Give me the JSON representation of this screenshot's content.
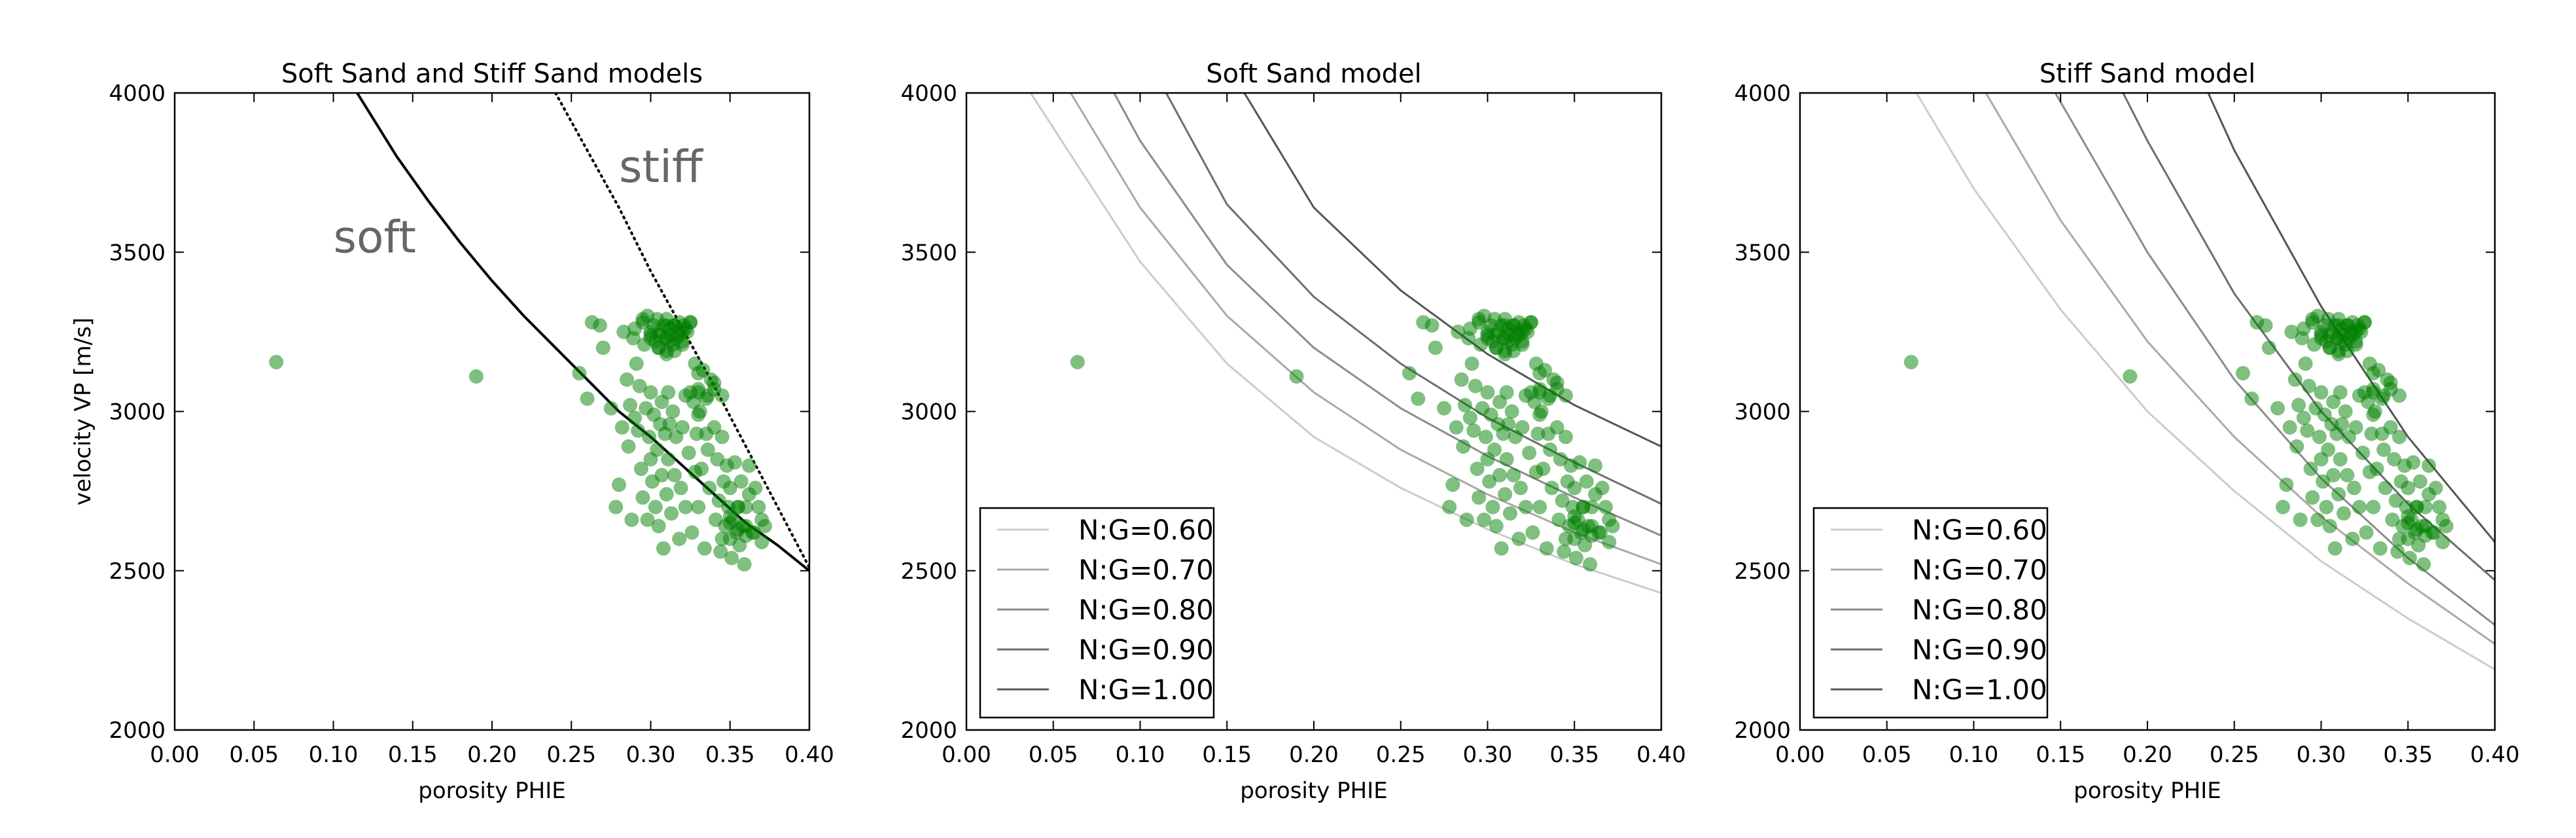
{
  "points": {
    "x": [
      0.064,
      0.19,
      0.255,
      0.26,
      0.263,
      0.268,
      0.27,
      0.275,
      0.278,
      0.28,
      0.282,
      0.283,
      0.285,
      0.286,
      0.287,
      0.288,
      0.289,
      0.29,
      0.29,
      0.291,
      0.292,
      0.293,
      0.294,
      0.295,
      0.295,
      0.296,
      0.297,
      0.298,
      0.298,
      0.299,
      0.3,
      0.3,
      0.3,
      0.301,
      0.302,
      0.302,
      0.303,
      0.303,
      0.304,
      0.304,
      0.305,
      0.305,
      0.306,
      0.306,
      0.307,
      0.307,
      0.308,
      0.308,
      0.309,
      0.309,
      0.31,
      0.31,
      0.31,
      0.311,
      0.311,
      0.312,
      0.312,
      0.313,
      0.313,
      0.314,
      0.314,
      0.315,
      0.315,
      0.316,
      0.316,
      0.317,
      0.318,
      0.318,
      0.319,
      0.32,
      0.32,
      0.321,
      0.322,
      0.322,
      0.323,
      0.324,
      0.325,
      0.326,
      0.327,
      0.328,
      0.328,
      0.329,
      0.33,
      0.33,
      0.331,
      0.332,
      0.333,
      0.334,
      0.335,
      0.336,
      0.337,
      0.338,
      0.34,
      0.341,
      0.342,
      0.343,
      0.344,
      0.345,
      0.346,
      0.347,
      0.348,
      0.349,
      0.35,
      0.35,
      0.351,
      0.352,
      0.353,
      0.354,
      0.355,
      0.356,
      0.357,
      0.358,
      0.359,
      0.36,
      0.362,
      0.364,
      0.366,
      0.368,
      0.37,
      0.372,
      0.3,
      0.305,
      0.31,
      0.315,
      0.32,
      0.325,
      0.33,
      0.335,
      0.34,
      0.345,
      0.35,
      0.355,
      0.36,
      0.365,
      0.37,
      0.295,
      0.31,
      0.33,
      0.35,
      0.36,
      0.325,
      0.32,
      0.315,
      0.305,
      0.3,
      0.31,
      0.312,
      0.318,
      0.322,
      0.33,
      0.336,
      0.355,
      0.362,
      0.345,
      0.34
    ],
    "y": [
      3155,
      3110,
      3120,
      3040,
      3280,
      3270,
      3200,
      3010,
      2700,
      2770,
      2950,
      3250,
      3100,
      2890,
      3020,
      2660,
      3230,
      3260,
      2980,
      3150,
      2940,
      3080,
      2820,
      3280,
      2730,
      3210,
      3010,
      2660,
      3300,
      2920,
      2850,
      3240,
      3060,
      2780,
      3270,
      2990,
      2700,
      3220,
      2880,
      3290,
      2640,
      3200,
      2960,
      3250,
      3030,
      2800,
      3270,
      2570,
      3230,
      2930,
      3290,
      2740,
      3190,
      3060,
      2850,
      3260,
      2960,
      3240,
      2680,
      3210,
      3000,
      3270,
      2800,
      3230,
      2920,
      3250,
      2600,
      3280,
      2760,
      3220,
      2950,
      3270,
      3050,
      2700,
      3250,
      2870,
      3280,
      2620,
      3030,
      2810,
      3150,
      2930,
      3070,
      2700,
      3000,
      2820,
      3130,
      2570,
      2930,
      3050,
      2760,
      3100,
      3070,
      2660,
      2850,
      2720,
      2560,
      2920,
      2780,
      2640,
      2830,
      2700,
      2600,
      2760,
      2540,
      2660,
      2840,
      2620,
      2700,
      2580,
      2780,
      2640,
      2520,
      2700,
      2830,
      2620,
      2760,
      2700,
      2590,
      2640,
      3250,
      3240,
      3230,
      3270,
      3250,
      3280,
      3060,
      3040,
      3090,
      3050,
      2650,
      2630,
      2640,
      2620,
      2660,
      3290,
      3270,
      2990,
      2670,
      2610,
      3060,
      3210,
      3190,
      3200,
      3230,
      3180,
      3220,
      3240,
      3260,
      3120,
      2880,
      2700,
      2740,
      2600,
      2950
    ]
  },
  "panels": [
    {
      "title": "Soft Sand and Stiff Sand models",
      "ylabel": "velocity VP [m/s]",
      "annotations": [
        {
          "text": "soft",
          "x": 0.1,
          "y": 3500
        },
        {
          "text": "stiff",
          "x": 0.28,
          "y": 3720
        }
      ]
    },
    {
      "title": "Soft Sand model",
      "ylabel": "",
      "legend": [
        "N:G=0.60",
        "N:G=0.70",
        "N:G=0.80",
        "N:G=0.90",
        "N:G=1.00"
      ]
    },
    {
      "title": "Stiff Sand model",
      "ylabel": "",
      "legend": [
        "N:G=0.60",
        "N:G=0.70",
        "N:G=0.80",
        "N:G=0.90",
        "N:G=1.00"
      ]
    }
  ],
  "chart_data": [
    {
      "type": "scatter",
      "title": "Soft Sand and Stiff Sand models",
      "xlabel": "porosity PHIE",
      "ylabel": "velocity VP [m/s]",
      "xlim": [
        0.0,
        0.4
      ],
      "ylim": [
        2000,
        4000
      ],
      "xticks": [
        "0.00",
        "0.05",
        "0.10",
        "0.15",
        "0.20",
        "0.25",
        "0.30",
        "0.35",
        "0.40"
      ],
      "yticks": [
        "2000",
        "2500",
        "3000",
        "3500",
        "4000"
      ],
      "series": [
        {
          "name": "soft",
          "style": "solid",
          "x": [
            0.115,
            0.14,
            0.16,
            0.18,
            0.2,
            0.22,
            0.24,
            0.26,
            0.28,
            0.3,
            0.32,
            0.34,
            0.36,
            0.38,
            0.4
          ],
          "y": [
            4000,
            3800,
            3660,
            3530,
            3410,
            3300,
            3200,
            3100,
            3000,
            2920,
            2830,
            2740,
            2650,
            2580,
            2500
          ]
        },
        {
          "name": "stiff",
          "style": "dotted",
          "x": [
            0.24,
            0.26,
            0.28,
            0.3,
            0.32,
            0.34,
            0.36,
            0.38,
            0.4
          ],
          "y": [
            4000,
            3820,
            3640,
            3440,
            3260,
            3080,
            2890,
            2700,
            2510
          ]
        }
      ],
      "scatter": "points"
    },
    {
      "type": "scatter",
      "title": "Soft Sand model",
      "xlabel": "porosity PHIE",
      "ylabel": "",
      "xlim": [
        0.0,
        0.4
      ],
      "ylim": [
        2000,
        4000
      ],
      "xticks": [
        "0.00",
        "0.05",
        "0.10",
        "0.15",
        "0.20",
        "0.25",
        "0.30",
        "0.35",
        "0.40"
      ],
      "yticks": [
        "2000",
        "2500",
        "3000",
        "3500",
        "4000"
      ],
      "legend_position": "lower-left",
      "series": [
        {
          "name": "N:G=0.60",
          "color": "#cccccc",
          "x": [
            0.037,
            0.1,
            0.15,
            0.2,
            0.25,
            0.3,
            0.35,
            0.4
          ],
          "y": [
            4000,
            3470,
            3150,
            2920,
            2760,
            2630,
            2520,
            2430
          ]
        },
        {
          "name": "N:G=0.70",
          "color": "#aaaaaa",
          "x": [
            0.06,
            0.1,
            0.15,
            0.2,
            0.25,
            0.3,
            0.35,
            0.4
          ],
          "y": [
            4000,
            3640,
            3300,
            3060,
            2880,
            2740,
            2620,
            2520
          ]
        },
        {
          "name": "N:G=0.80",
          "color": "#8c8c8c",
          "x": [
            0.085,
            0.1,
            0.15,
            0.2,
            0.25,
            0.3,
            0.35,
            0.4
          ],
          "y": [
            4000,
            3850,
            3460,
            3200,
            3010,
            2860,
            2730,
            2610
          ]
        },
        {
          "name": "N:G=0.90",
          "color": "#6e6e6e",
          "x": [
            0.115,
            0.15,
            0.2,
            0.25,
            0.3,
            0.35,
            0.4
          ],
          "y": [
            4000,
            3650,
            3360,
            3150,
            2980,
            2840,
            2710
          ]
        },
        {
          "name": "N:G=1.00",
          "color": "#555555",
          "x": [
            0.16,
            0.2,
            0.25,
            0.3,
            0.35,
            0.4
          ],
          "y": [
            4000,
            3640,
            3380,
            3180,
            3020,
            2890
          ]
        }
      ],
      "scatter": "points"
    },
    {
      "type": "scatter",
      "title": "Stiff Sand model",
      "xlabel": "porosity PHIE",
      "ylabel": "",
      "xlim": [
        0.0,
        0.4
      ],
      "ylim": [
        2000,
        4000
      ],
      "xticks": [
        "0.00",
        "0.05",
        "0.10",
        "0.15",
        "0.20",
        "0.25",
        "0.30",
        "0.35",
        "0.40"
      ],
      "yticks": [
        "2000",
        "2500",
        "3000",
        "3500",
        "4000"
      ],
      "legend_position": "lower-left",
      "series": [
        {
          "name": "N:G=0.60",
          "color": "#cccccc",
          "x": [
            0.067,
            0.1,
            0.15,
            0.2,
            0.25,
            0.3,
            0.35,
            0.4
          ],
          "y": [
            4000,
            3700,
            3320,
            3000,
            2750,
            2530,
            2350,
            2190
          ]
        },
        {
          "name": "N:G=0.70",
          "color": "#aaaaaa",
          "x": [
            0.107,
            0.15,
            0.2,
            0.25,
            0.3,
            0.35,
            0.4
          ],
          "y": [
            4000,
            3600,
            3220,
            2920,
            2670,
            2460,
            2270
          ]
        },
        {
          "name": "N:G=0.80",
          "color": "#8c8c8c",
          "x": [
            0.147,
            0.2,
            0.25,
            0.3,
            0.35,
            0.4
          ],
          "y": [
            4000,
            3500,
            3100,
            2790,
            2540,
            2330
          ]
        },
        {
          "name": "N:G=0.90",
          "color": "#6e6e6e",
          "x": [
            0.186,
            0.2,
            0.25,
            0.3,
            0.35,
            0.4
          ],
          "y": [
            4000,
            3850,
            3370,
            3000,
            2710,
            2470
          ]
        },
        {
          "name": "N:G=1.00",
          "color": "#555555",
          "x": [
            0.235,
            0.25,
            0.3,
            0.35,
            0.4
          ],
          "y": [
            4000,
            3820,
            3330,
            2920,
            2590
          ]
        }
      ],
      "scatter": "points"
    }
  ],
  "colors": {
    "points": "#008000",
    "axis": "#000000",
    "annotation": "#666666",
    "soft_curve": "#000000",
    "stiff_curve": "#000000"
  }
}
